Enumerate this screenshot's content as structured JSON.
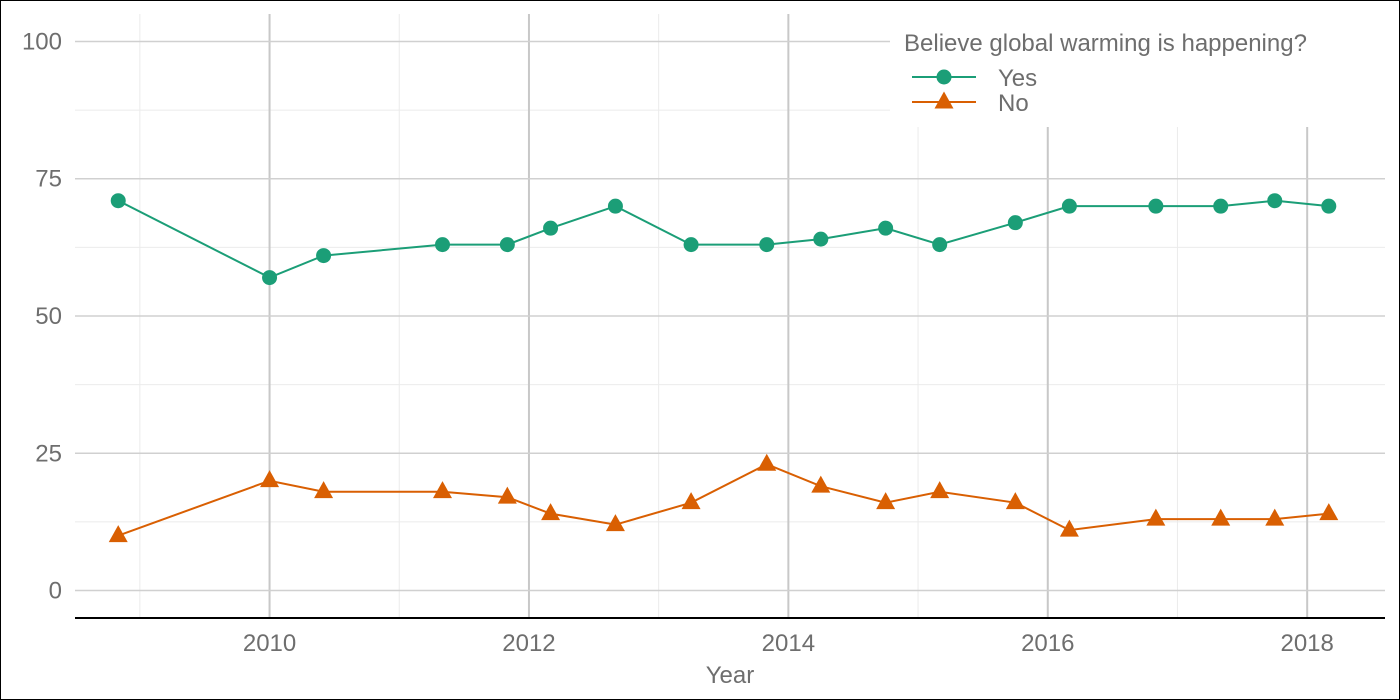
{
  "chart_data": {
    "type": "line",
    "title": "",
    "xlabel": "Year",
    "ylabel": "",
    "xlim": [
      2008.5,
      2018.6
    ],
    "ylim": [
      -5,
      105
    ],
    "x_ticks": [
      2010,
      2012,
      2014,
      2016,
      2018
    ],
    "y_ticks": [
      0,
      25,
      50,
      75,
      100
    ],
    "grid": true,
    "legend": {
      "title": "Believe global warming is happening?",
      "placement": "top-right"
    },
    "series": [
      {
        "name": "Yes",
        "marker": "circle",
        "color": "#1b9e77",
        "x": [
          "2008-11",
          "2010-01",
          "2010-06",
          "2011-05",
          "2011-11",
          "2012-03",
          "2012-09",
          "2013-04",
          "2013-11",
          "2014-04",
          "2014-10",
          "2015-03",
          "2015-10",
          "2016-03",
          "2016-11",
          "2017-05",
          "2017-10",
          "2018-03"
        ],
        "values": [
          71,
          57,
          61,
          63,
          63,
          66,
          70,
          63,
          63,
          64,
          66,
          63,
          67,
          70,
          70,
          70,
          71,
          70
        ]
      },
      {
        "name": "No",
        "marker": "triangle",
        "color": "#d95f02",
        "x": [
          "2008-11",
          "2010-01",
          "2010-06",
          "2011-05",
          "2011-11",
          "2012-03",
          "2012-09",
          "2013-04",
          "2013-11",
          "2014-04",
          "2014-10",
          "2015-03",
          "2015-10",
          "2016-03",
          "2016-11",
          "2017-05",
          "2017-10",
          "2018-03"
        ],
        "values": [
          10,
          20,
          18,
          18,
          17,
          14,
          12,
          16,
          23,
          19,
          16,
          18,
          16,
          11,
          13,
          13,
          13,
          14
        ]
      }
    ]
  }
}
